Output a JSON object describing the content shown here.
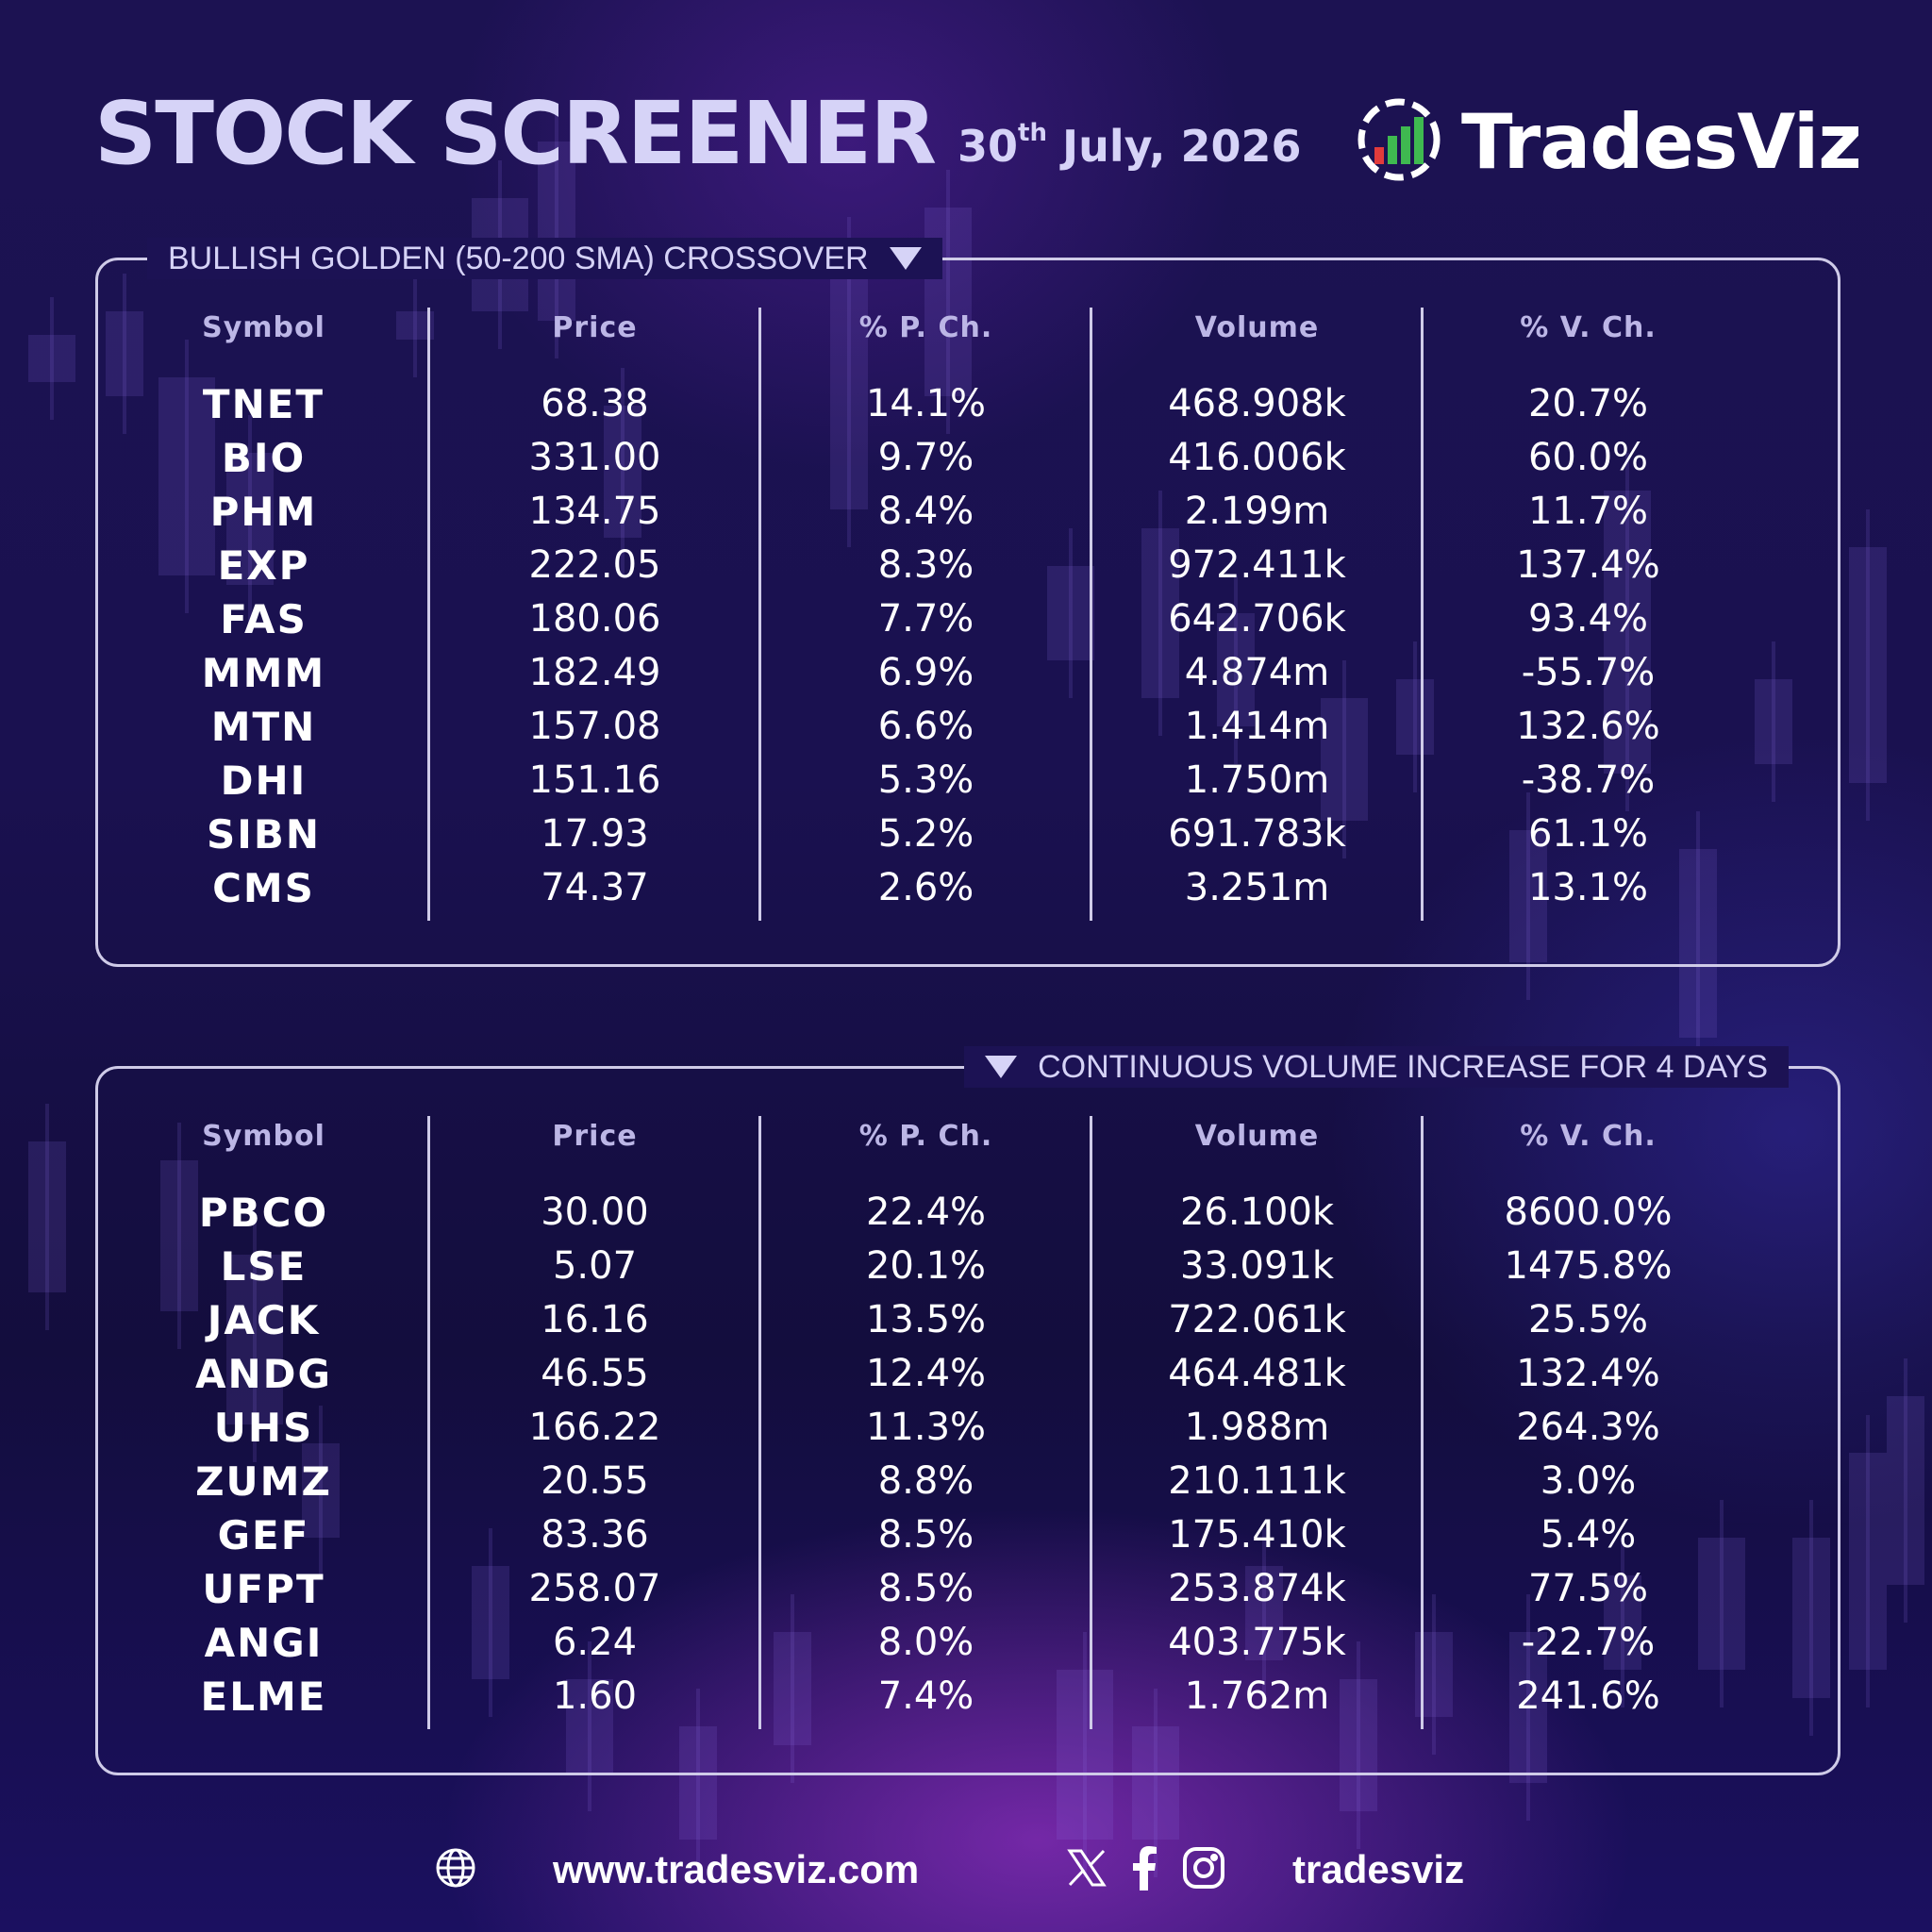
{
  "header": {
    "title": "STOCK SCREENER",
    "date_day": "30",
    "date_suffix": "th",
    "date_rest": " July, 2026",
    "brand": "TradesViz",
    "brand_icon": "bar-chart-gauge-logo"
  },
  "columns": [
    "Symbol",
    "Price",
    "% P. Ch.",
    "Volume",
    "% V. Ch."
  ],
  "panels": [
    {
      "title": "BULLISH GOLDEN (50-200 SMA) CROSSOVER",
      "rows": [
        [
          "TNET",
          "68.38",
          "14.1%",
          "468.908k",
          "20.7%"
        ],
        [
          "BIO",
          "331.00",
          "9.7%",
          "416.006k",
          "60.0%"
        ],
        [
          "PHM",
          "134.75",
          "8.4%",
          "2.199m",
          "11.7%"
        ],
        [
          "EXP",
          "222.05",
          "8.3%",
          "972.411k",
          "137.4%"
        ],
        [
          "FAS",
          "180.06",
          "7.7%",
          "642.706k",
          "93.4%"
        ],
        [
          "MMM",
          "182.49",
          "6.9%",
          "4.874m",
          "-55.7%"
        ],
        [
          "MTN",
          "157.08",
          "6.6%",
          "1.414m",
          "132.6%"
        ],
        [
          "DHI",
          "151.16",
          "5.3%",
          "1.750m",
          "-38.7%"
        ],
        [
          "SIBN",
          "17.93",
          "5.2%",
          "691.783k",
          "61.1%"
        ],
        [
          "CMS",
          "74.37",
          "2.6%",
          "3.251m",
          "13.1%"
        ]
      ]
    },
    {
      "title": "CONTINUOUS VOLUME INCREASE FOR 4 DAYS",
      "rows": [
        [
          "PBCO",
          "30.00",
          "22.4%",
          "26.100k",
          "8600.0%"
        ],
        [
          "LSE",
          "5.07",
          "20.1%",
          "33.091k",
          "1475.8%"
        ],
        [
          "JACK",
          "16.16",
          "13.5%",
          "722.061k",
          "25.5%"
        ],
        [
          "ANDG",
          "46.55",
          "12.4%",
          "464.481k",
          "132.4%"
        ],
        [
          "UHS",
          "166.22",
          "11.3%",
          "1.988m",
          "264.3%"
        ],
        [
          "ZUMZ",
          "20.55",
          "8.8%",
          "210.111k",
          "3.0%"
        ],
        [
          "GEF",
          "83.36",
          "8.5%",
          "175.410k",
          "5.4%"
        ],
        [
          "UFPT",
          "258.07",
          "8.5%",
          "253.874k",
          "77.5%"
        ],
        [
          "ANGI",
          "6.24",
          "8.0%",
          "403.775k",
          "-22.7%"
        ],
        [
          "ELME",
          "1.60",
          "7.4%",
          "1.762m",
          "241.6%"
        ]
      ]
    }
  ],
  "footer": {
    "website": "www.tradesviz.com",
    "handle": "tradesviz",
    "icons": [
      "globe-icon",
      "x-icon",
      "facebook-icon",
      "instagram-icon"
    ]
  }
}
